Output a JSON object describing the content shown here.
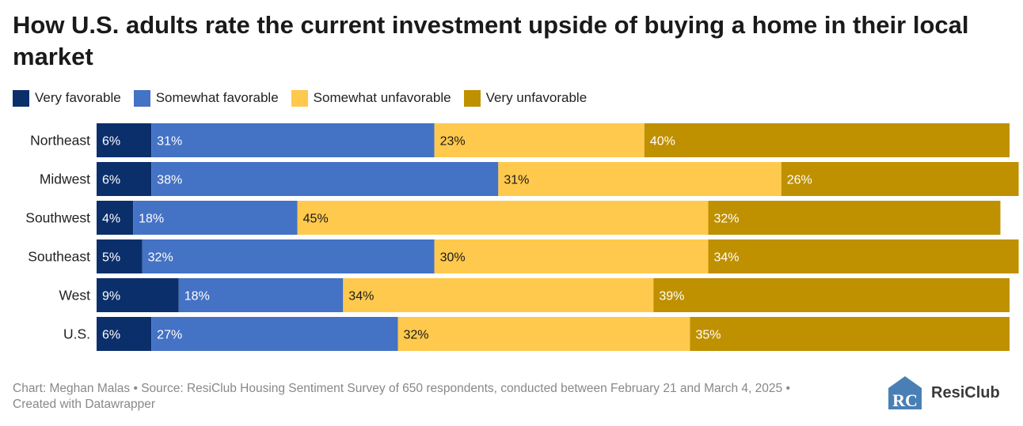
{
  "title": "How U.S. adults rate the current investment upside of buying a home in their local market",
  "legend": [
    {
      "label": "Very favorable",
      "color": "#0b2f6b"
    },
    {
      "label": "Somewhat favorable",
      "color": "#4472c4"
    },
    {
      "label": "Somewhat unfavorable",
      "color": "#ffc94d"
    },
    {
      "label": "Very unfavorable",
      "color": "#bf9000"
    }
  ],
  "chart_data": {
    "type": "bar",
    "orientation": "horizontal",
    "stacked": true,
    "title": "How U.S. adults rate the current investment upside of buying a home in their local market",
    "categories": [
      "Northeast",
      "Midwest",
      "Southwest",
      "Southeast",
      "West",
      "U.S."
    ],
    "series": [
      {
        "name": "Very favorable",
        "color": "#0b2f6b",
        "values": [
          6,
          6,
          4,
          5,
          9,
          6
        ]
      },
      {
        "name": "Somewhat favorable",
        "color": "#4472c4",
        "values": [
          31,
          38,
          18,
          32,
          18,
          27
        ]
      },
      {
        "name": "Somewhat unfavorable",
        "color": "#ffc94d",
        "values": [
          23,
          31,
          45,
          30,
          34,
          32
        ]
      },
      {
        "name": "Very unfavorable",
        "color": "#bf9000",
        "values": [
          40,
          26,
          32,
          34,
          39,
          35
        ]
      }
    ],
    "value_suffix": "%",
    "xlim": [
      0,
      100
    ],
    "legend_position": "top-left"
  },
  "footer": {
    "line1": "Chart: Meghan Malas • Source: ResiClub Housing Sentiment Survey of 650 respondents, conducted between February 21 and March 4, 2025 •",
    "line2": "Created with Datawrapper"
  },
  "logo": {
    "text": "ResiClub",
    "mark": "RC",
    "color": "#4a7fb5"
  }
}
